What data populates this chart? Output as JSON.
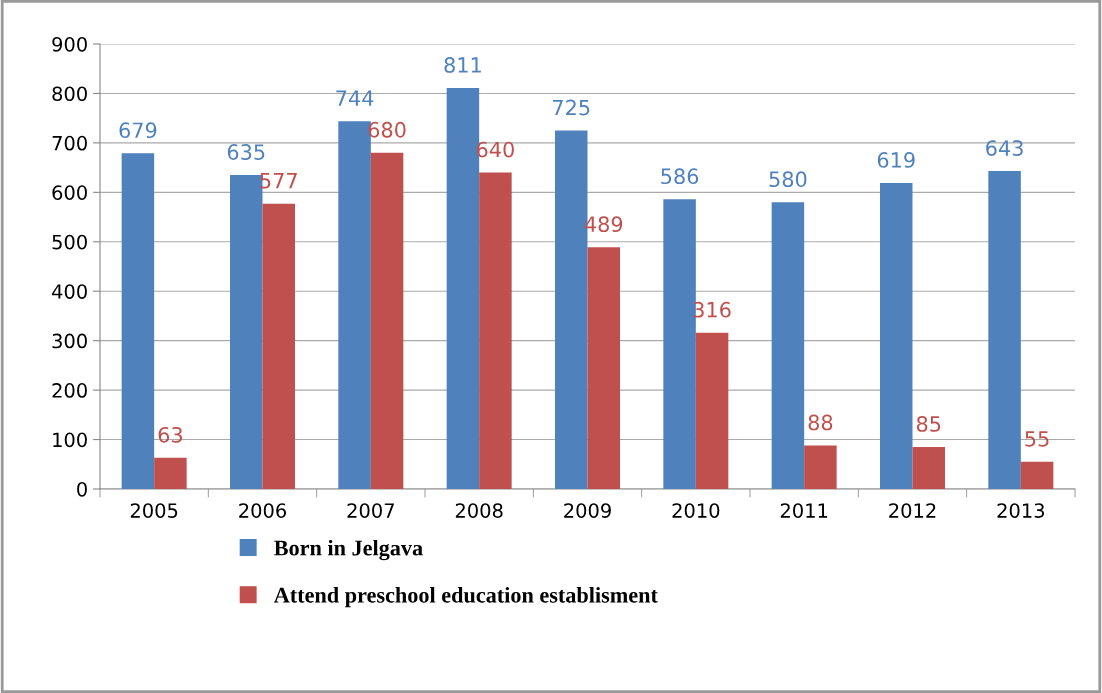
{
  "chart_data": {
    "type": "bar",
    "categories": [
      "2005",
      "2006",
      "2007",
      "2008",
      "2009",
      "2010",
      "2011",
      "2012",
      "2013"
    ],
    "series": [
      {
        "name": "Born in Jelgava",
        "color": "#4f81bd",
        "values": [
          679,
          635,
          744,
          811,
          725,
          586,
          580,
          619,
          643
        ]
      },
      {
        "name": "Attend preschool education establisment",
        "color": "#c0504d",
        "values": [
          63,
          577,
          680,
          640,
          489,
          316,
          88,
          85,
          55
        ]
      }
    ],
    "ylim": [
      0,
      900
    ],
    "yticks": [
      0,
      100,
      200,
      300,
      400,
      500,
      600,
      700,
      800,
      900
    ],
    "grid": "y",
    "legend": "bottom",
    "data_labels": true
  }
}
